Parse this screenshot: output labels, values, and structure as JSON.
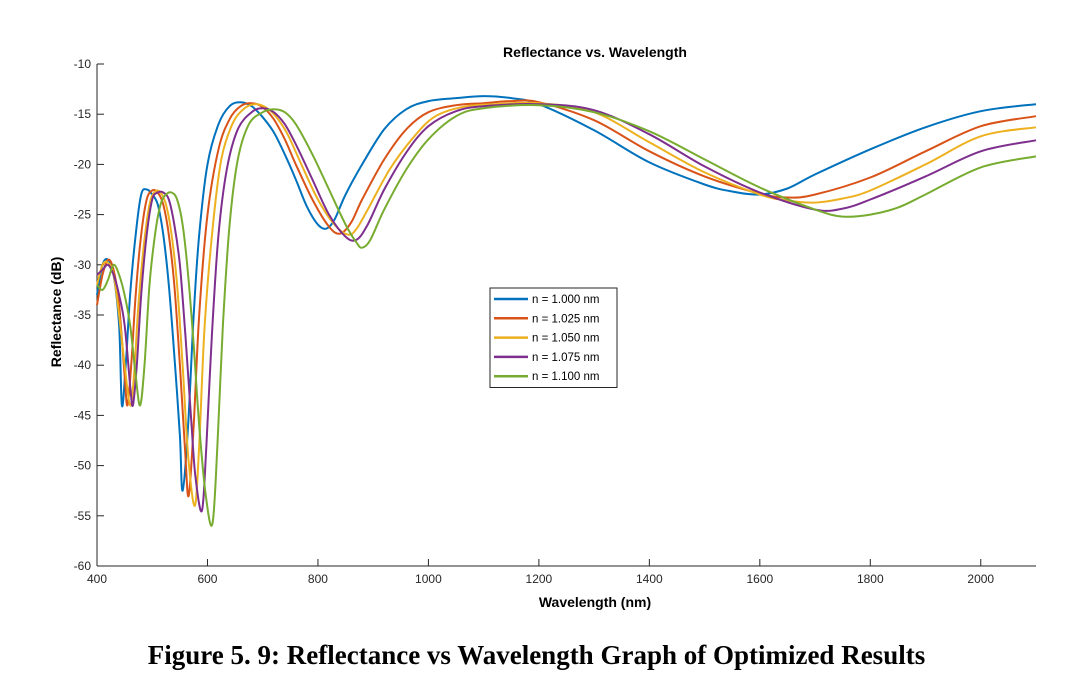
{
  "figure_caption": "Figure 5. 9: Reflectance vs Wavelength Graph of Optimized Results",
  "chart_data": {
    "type": "line",
    "title": "Reflectance vs. Wavelength",
    "xlabel": "Wavelength (nm)",
    "ylabel": "Reflectance (dB)",
    "xlim": [
      400,
      2100
    ],
    "ylim": [
      -60,
      -10
    ],
    "xticks": [
      400,
      600,
      800,
      1000,
      1200,
      1400,
      1600,
      1800,
      2000
    ],
    "yticks": [
      -10,
      -15,
      -20,
      -25,
      -30,
      -35,
      -40,
      -45,
      -50,
      -55,
      -60
    ],
    "grid": false,
    "legend_position": "center",
    "series": [
      {
        "name": "n = 1.000 nm",
        "color": "#0072BD",
        "points": [
          [
            400,
            -33
          ],
          [
            410,
            -30
          ],
          [
            420,
            -29.5
          ],
          [
            430,
            -31
          ],
          [
            440,
            -36
          ],
          [
            445,
            -44
          ],
          [
            452,
            -40
          ],
          [
            460,
            -33
          ],
          [
            470,
            -27
          ],
          [
            480,
            -23
          ],
          [
            490,
            -22.5
          ],
          [
            500,
            -23
          ],
          [
            510,
            -24
          ],
          [
            520,
            -27
          ],
          [
            530,
            -32
          ],
          [
            540,
            -39
          ],
          [
            550,
            -47
          ],
          [
            555,
            -52.5
          ],
          [
            565,
            -46
          ],
          [
            575,
            -35
          ],
          [
            585,
            -27
          ],
          [
            600,
            -20
          ],
          [
            620,
            -16
          ],
          [
            640,
            -14.2
          ],
          [
            660,
            -13.8
          ],
          [
            680,
            -14.2
          ],
          [
            700,
            -15.3
          ],
          [
            720,
            -16.8
          ],
          [
            740,
            -19
          ],
          [
            760,
            -21.5
          ],
          [
            780,
            -24.2
          ],
          [
            800,
            -26
          ],
          [
            815,
            -26.4
          ],
          [
            830,
            -25.5
          ],
          [
            850,
            -23
          ],
          [
            880,
            -20
          ],
          [
            920,
            -16.5
          ],
          [
            960,
            -14.5
          ],
          [
            1000,
            -13.7
          ],
          [
            1050,
            -13.4
          ],
          [
            1100,
            -13.2
          ],
          [
            1150,
            -13.4
          ],
          [
            1200,
            -14
          ],
          [
            1300,
            -16.6
          ],
          [
            1400,
            -19.8
          ],
          [
            1500,
            -22
          ],
          [
            1550,
            -22.7
          ],
          [
            1600,
            -23
          ],
          [
            1650,
            -22.4
          ],
          [
            1700,
            -21
          ],
          [
            1800,
            -18.5
          ],
          [
            1900,
            -16.3
          ],
          [
            2000,
            -14.7
          ],
          [
            2100,
            -14
          ]
        ]
      },
      {
        "name": "n = 1.025 nm",
        "color": "#D95319",
        "points": [
          [
            400,
            -34
          ],
          [
            410,
            -31
          ],
          [
            420,
            -29.5
          ],
          [
            430,
            -30.5
          ],
          [
            440,
            -34
          ],
          [
            450,
            -41
          ],
          [
            455,
            -44
          ],
          [
            462,
            -40
          ],
          [
            470,
            -33
          ],
          [
            480,
            -27
          ],
          [
            490,
            -23.5
          ],
          [
            500,
            -22.6
          ],
          [
            510,
            -22.8
          ],
          [
            520,
            -24
          ],
          [
            530,
            -27
          ],
          [
            540,
            -32
          ],
          [
            550,
            -40
          ],
          [
            560,
            -49
          ],
          [
            566,
            -53
          ],
          [
            575,
            -46
          ],
          [
            585,
            -35
          ],
          [
            600,
            -25
          ],
          [
            620,
            -18.5
          ],
          [
            640,
            -15.5
          ],
          [
            660,
            -14.2
          ],
          [
            680,
            -13.9
          ],
          [
            700,
            -14.3
          ],
          [
            720,
            -15.5
          ],
          [
            740,
            -17.5
          ],
          [
            760,
            -20
          ],
          [
            790,
            -23.5
          ],
          [
            820,
            -26.2
          ],
          [
            840,
            -26.9
          ],
          [
            860,
            -25.8
          ],
          [
            880,
            -23.5
          ],
          [
            920,
            -19.5
          ],
          [
            960,
            -16.5
          ],
          [
            1000,
            -14.8
          ],
          [
            1050,
            -14.1
          ],
          [
            1100,
            -13.9
          ],
          [
            1150,
            -13.7
          ],
          [
            1200,
            -13.8
          ],
          [
            1300,
            -15.6
          ],
          [
            1400,
            -18.7
          ],
          [
            1500,
            -21.2
          ],
          [
            1600,
            -22.9
          ],
          [
            1650,
            -23.3
          ],
          [
            1700,
            -23
          ],
          [
            1800,
            -21.3
          ],
          [
            1900,
            -18.7
          ],
          [
            2000,
            -16.2
          ],
          [
            2100,
            -15.2
          ]
        ]
      },
      {
        "name": "n = 1.050 nm",
        "color": "#EDB120",
        "points": [
          [
            400,
            -32
          ],
          [
            410,
            -30
          ],
          [
            420,
            -29.8
          ],
          [
            430,
            -31
          ],
          [
            440,
            -35
          ],
          [
            450,
            -40
          ],
          [
            460,
            -44
          ],
          [
            467,
            -41
          ],
          [
            475,
            -34
          ],
          [
            485,
            -28
          ],
          [
            495,
            -24
          ],
          [
            505,
            -22.7
          ],
          [
            515,
            -22.8
          ],
          [
            525,
            -24
          ],
          [
            535,
            -27
          ],
          [
            545,
            -32
          ],
          [
            555,
            -40
          ],
          [
            565,
            -49
          ],
          [
            577,
            -54
          ],
          [
            585,
            -48
          ],
          [
            595,
            -36
          ],
          [
            610,
            -26
          ],
          [
            625,
            -19.5
          ],
          [
            645,
            -16
          ],
          [
            665,
            -14.5
          ],
          [
            685,
            -14
          ],
          [
            705,
            -14.3
          ],
          [
            725,
            -15.3
          ],
          [
            745,
            -17
          ],
          [
            770,
            -20
          ],
          [
            800,
            -23.5
          ],
          [
            830,
            -26
          ],
          [
            855,
            -27
          ],
          [
            870,
            -26.4
          ],
          [
            890,
            -24.5
          ],
          [
            930,
            -20.5
          ],
          [
            970,
            -17.5
          ],
          [
            1010,
            -15.3
          ],
          [
            1060,
            -14.3
          ],
          [
            1120,
            -14
          ],
          [
            1200,
            -13.9
          ],
          [
            1300,
            -14.8
          ],
          [
            1400,
            -17.8
          ],
          [
            1500,
            -20.8
          ],
          [
            1600,
            -23
          ],
          [
            1650,
            -23.6
          ],
          [
            1700,
            -23.8
          ],
          [
            1750,
            -23.4
          ],
          [
            1800,
            -22.6
          ],
          [
            1900,
            -20
          ],
          [
            2000,
            -17.2
          ],
          [
            2100,
            -16.3
          ]
        ]
      },
      {
        "name": "n = 1.075 nm",
        "color": "#7E2F8E",
        "points": [
          [
            400,
            -31
          ],
          [
            410,
            -30.5
          ],
          [
            420,
            -30
          ],
          [
            430,
            -31
          ],
          [
            440,
            -33
          ],
          [
            450,
            -36
          ],
          [
            460,
            -42
          ],
          [
            465,
            -44
          ],
          [
            472,
            -40
          ],
          [
            480,
            -33
          ],
          [
            490,
            -27
          ],
          [
            500,
            -23.5
          ],
          [
            510,
            -22.8
          ],
          [
            520,
            -22.8
          ],
          [
            530,
            -23.5
          ],
          [
            540,
            -26
          ],
          [
            550,
            -30
          ],
          [
            560,
            -37
          ],
          [
            570,
            -45
          ],
          [
            578,
            -51
          ],
          [
            590,
            -54.5
          ],
          [
            598,
            -48
          ],
          [
            608,
            -37
          ],
          [
            620,
            -27
          ],
          [
            635,
            -20.5
          ],
          [
            655,
            -16.5
          ],
          [
            680,
            -14.8
          ],
          [
            700,
            -14.4
          ],
          [
            720,
            -14.8
          ],
          [
            740,
            -16
          ],
          [
            760,
            -18
          ],
          [
            790,
            -21.5
          ],
          [
            820,
            -25
          ],
          [
            850,
            -27.2
          ],
          [
            870,
            -27.5
          ],
          [
            890,
            -26
          ],
          [
            920,
            -22.5
          ],
          [
            960,
            -18.8
          ],
          [
            1000,
            -16.2
          ],
          [
            1050,
            -14.7
          ],
          [
            1100,
            -14.2
          ],
          [
            1200,
            -14
          ],
          [
            1300,
            -14.6
          ],
          [
            1400,
            -17
          ],
          [
            1500,
            -20.2
          ],
          [
            1600,
            -22.8
          ],
          [
            1700,
            -24.5
          ],
          [
            1750,
            -24.4
          ],
          [
            1800,
            -23.5
          ],
          [
            1900,
            -21.2
          ],
          [
            2000,
            -18.7
          ],
          [
            2100,
            -17.6
          ]
        ]
      },
      {
        "name": "n = 1.100 nm",
        "color": "#77AC30",
        "points": [
          [
            400,
            -32
          ],
          [
            410,
            -32.5
          ],
          [
            420,
            -31.5
          ],
          [
            430,
            -30
          ],
          [
            440,
            -31
          ],
          [
            450,
            -33
          ],
          [
            460,
            -36
          ],
          [
            470,
            -41
          ],
          [
            478,
            -44
          ],
          [
            486,
            -40
          ],
          [
            495,
            -32
          ],
          [
            505,
            -27
          ],
          [
            515,
            -24
          ],
          [
            525,
            -23
          ],
          [
            535,
            -22.8
          ],
          [
            545,
            -23.5
          ],
          [
            555,
            -26
          ],
          [
            565,
            -31
          ],
          [
            575,
            -38
          ],
          [
            585,
            -46
          ],
          [
            597,
            -53
          ],
          [
            609,
            -55.8
          ],
          [
            618,
            -48
          ],
          [
            628,
            -36
          ],
          [
            640,
            -26
          ],
          [
            655,
            -19.5
          ],
          [
            675,
            -16
          ],
          [
            700,
            -14.8
          ],
          [
            720,
            -14.5
          ],
          [
            740,
            -14.8
          ],
          [
            760,
            -16
          ],
          [
            790,
            -19
          ],
          [
            820,
            -22.5
          ],
          [
            850,
            -26
          ],
          [
            870,
            -27.8
          ],
          [
            880,
            -28.3
          ],
          [
            895,
            -27.5
          ],
          [
            920,
            -24.5
          ],
          [
            960,
            -20.5
          ],
          [
            1000,
            -17.5
          ],
          [
            1050,
            -15.2
          ],
          [
            1100,
            -14.4
          ],
          [
            1200,
            -14.1
          ],
          [
            1300,
            -14.8
          ],
          [
            1400,
            -16.7
          ],
          [
            1500,
            -19.5
          ],
          [
            1600,
            -22.3
          ],
          [
            1700,
            -24.5
          ],
          [
            1750,
            -25.2
          ],
          [
            1800,
            -25
          ],
          [
            1850,
            -24.3
          ],
          [
            1900,
            -23
          ],
          [
            2000,
            -20.3
          ],
          [
            2100,
            -19.2
          ]
        ]
      }
    ]
  }
}
